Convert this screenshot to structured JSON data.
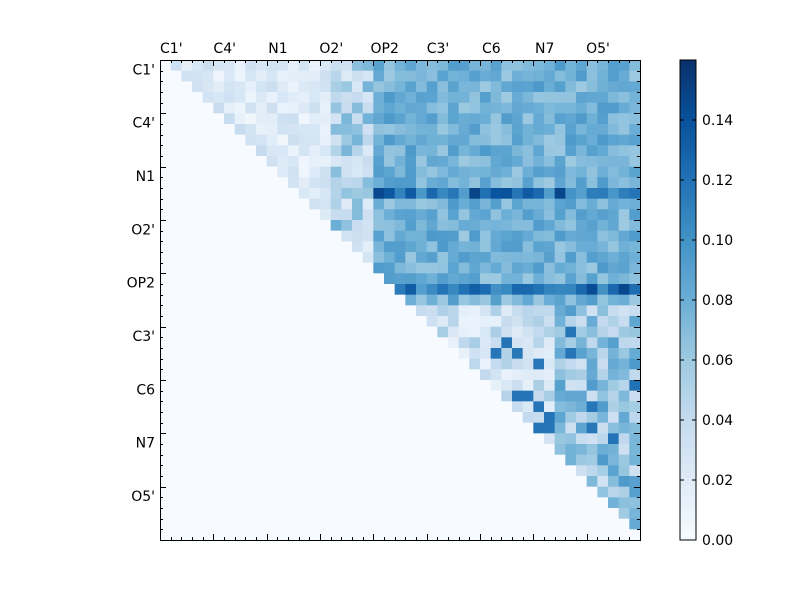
{
  "chart_data": {
    "type": "heatmap",
    "title": "",
    "grid": false,
    "colormap": "Blues",
    "axis_labels": [
      "C1'",
      "C4'",
      "N1",
      "O2'",
      "OP2",
      "C3'",
      "C6",
      "N7",
      "O5'"
    ],
    "label_every": 5,
    "n": 45,
    "colorbar": {
      "min": 0.0,
      "max": 0.16,
      "ticks": [
        "0.00",
        "0.02",
        "0.04",
        "0.06",
        "0.08",
        "0.10",
        "0.12",
        "0.14"
      ]
    },
    "matrix_description": "upper-triangular matrix: values near 0.0-0.03 in the left block (columns < 20), 0.05-0.10 in the right block; strongest row at OP2 region ~0.10-0.15"
  }
}
